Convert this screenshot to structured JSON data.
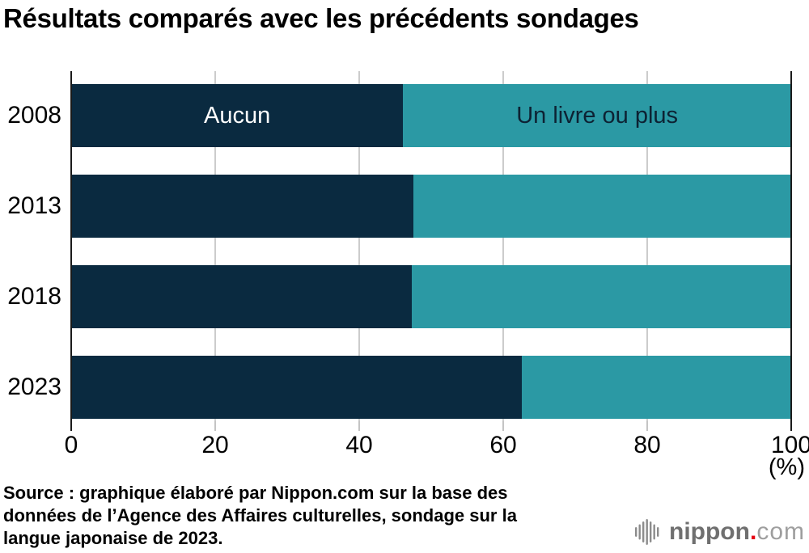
{
  "title": "Résultats comparés avec les précédents sondages",
  "chart_data": {
    "type": "bar",
    "orientation": "horizontal",
    "stacked": true,
    "unit": "%",
    "categories": [
      "2008",
      "2013",
      "2018",
      "2023"
    ],
    "series": [
      {
        "name": "Aucun",
        "color": "#0a2a40",
        "label_color": "#ffffff",
        "values": [
          46.1,
          47.5,
          47.3,
          62.6
        ]
      },
      {
        "name": "Un livre ou plus",
        "color": "#2b99a4",
        "label_color": "#0d2233",
        "values": [
          53.9,
          52.5,
          52.7,
          37.4
        ]
      }
    ],
    "xlim": [
      0,
      100
    ],
    "x_ticks": [
      0,
      20,
      40,
      60,
      80,
      100
    ],
    "x_axis_unit_label": "(%)",
    "grid": true,
    "legend_position": "labels inside first bar",
    "series_labels_on_first_bar_only": true
  },
  "source_lines": [
    "Source : graphique élaboré par Nippon.com sur la base des",
    "données de l’Agence des Affaires culturelles, sondage sur la",
    "langue japonaise de 2023."
  ],
  "logo": {
    "text_bold": "nippon",
    "dot": ".",
    "text_light": "com"
  },
  "colors": {
    "navy": "#0a2a40",
    "teal": "#2b99a4",
    "grid": "#cccccc",
    "tick_gray": "#c4c4c4",
    "spine": "#1a1a1a",
    "logo_bold_gray": "#6f6f6f",
    "logo_light_gray": "#9e9e9e",
    "logo_icon_gray": "#8c8c8c",
    "logo_red": "#e60012"
  }
}
